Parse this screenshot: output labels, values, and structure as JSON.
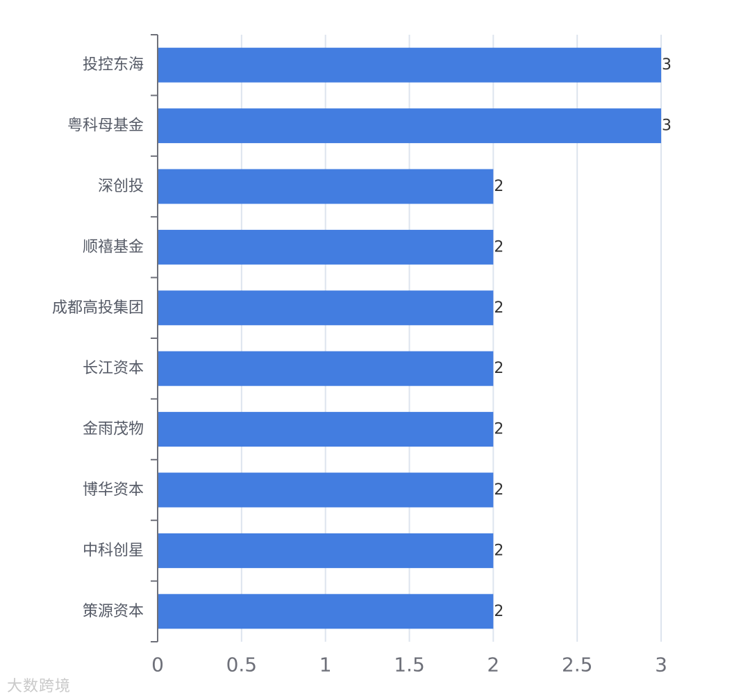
{
  "chart_data": {
    "type": "bar",
    "orientation": "horizontal",
    "categories": [
      "投控东海",
      "粤科母基金",
      "深创投",
      "顺禧基金",
      "成都高投集团",
      "长江资本",
      "金雨茂物",
      "博华资本",
      "中科创星",
      "策源资本"
    ],
    "values": [
      3,
      3,
      2,
      2,
      2,
      2,
      2,
      2,
      2,
      2
    ],
    "xlim": [
      0,
      3
    ],
    "xticks": [
      "0",
      "0.5",
      "1",
      "1.5",
      "2",
      "2.5",
      "3"
    ],
    "grid": true,
    "bar_color": "#437de0",
    "data_labels": true
  },
  "watermark": "大数跨境"
}
